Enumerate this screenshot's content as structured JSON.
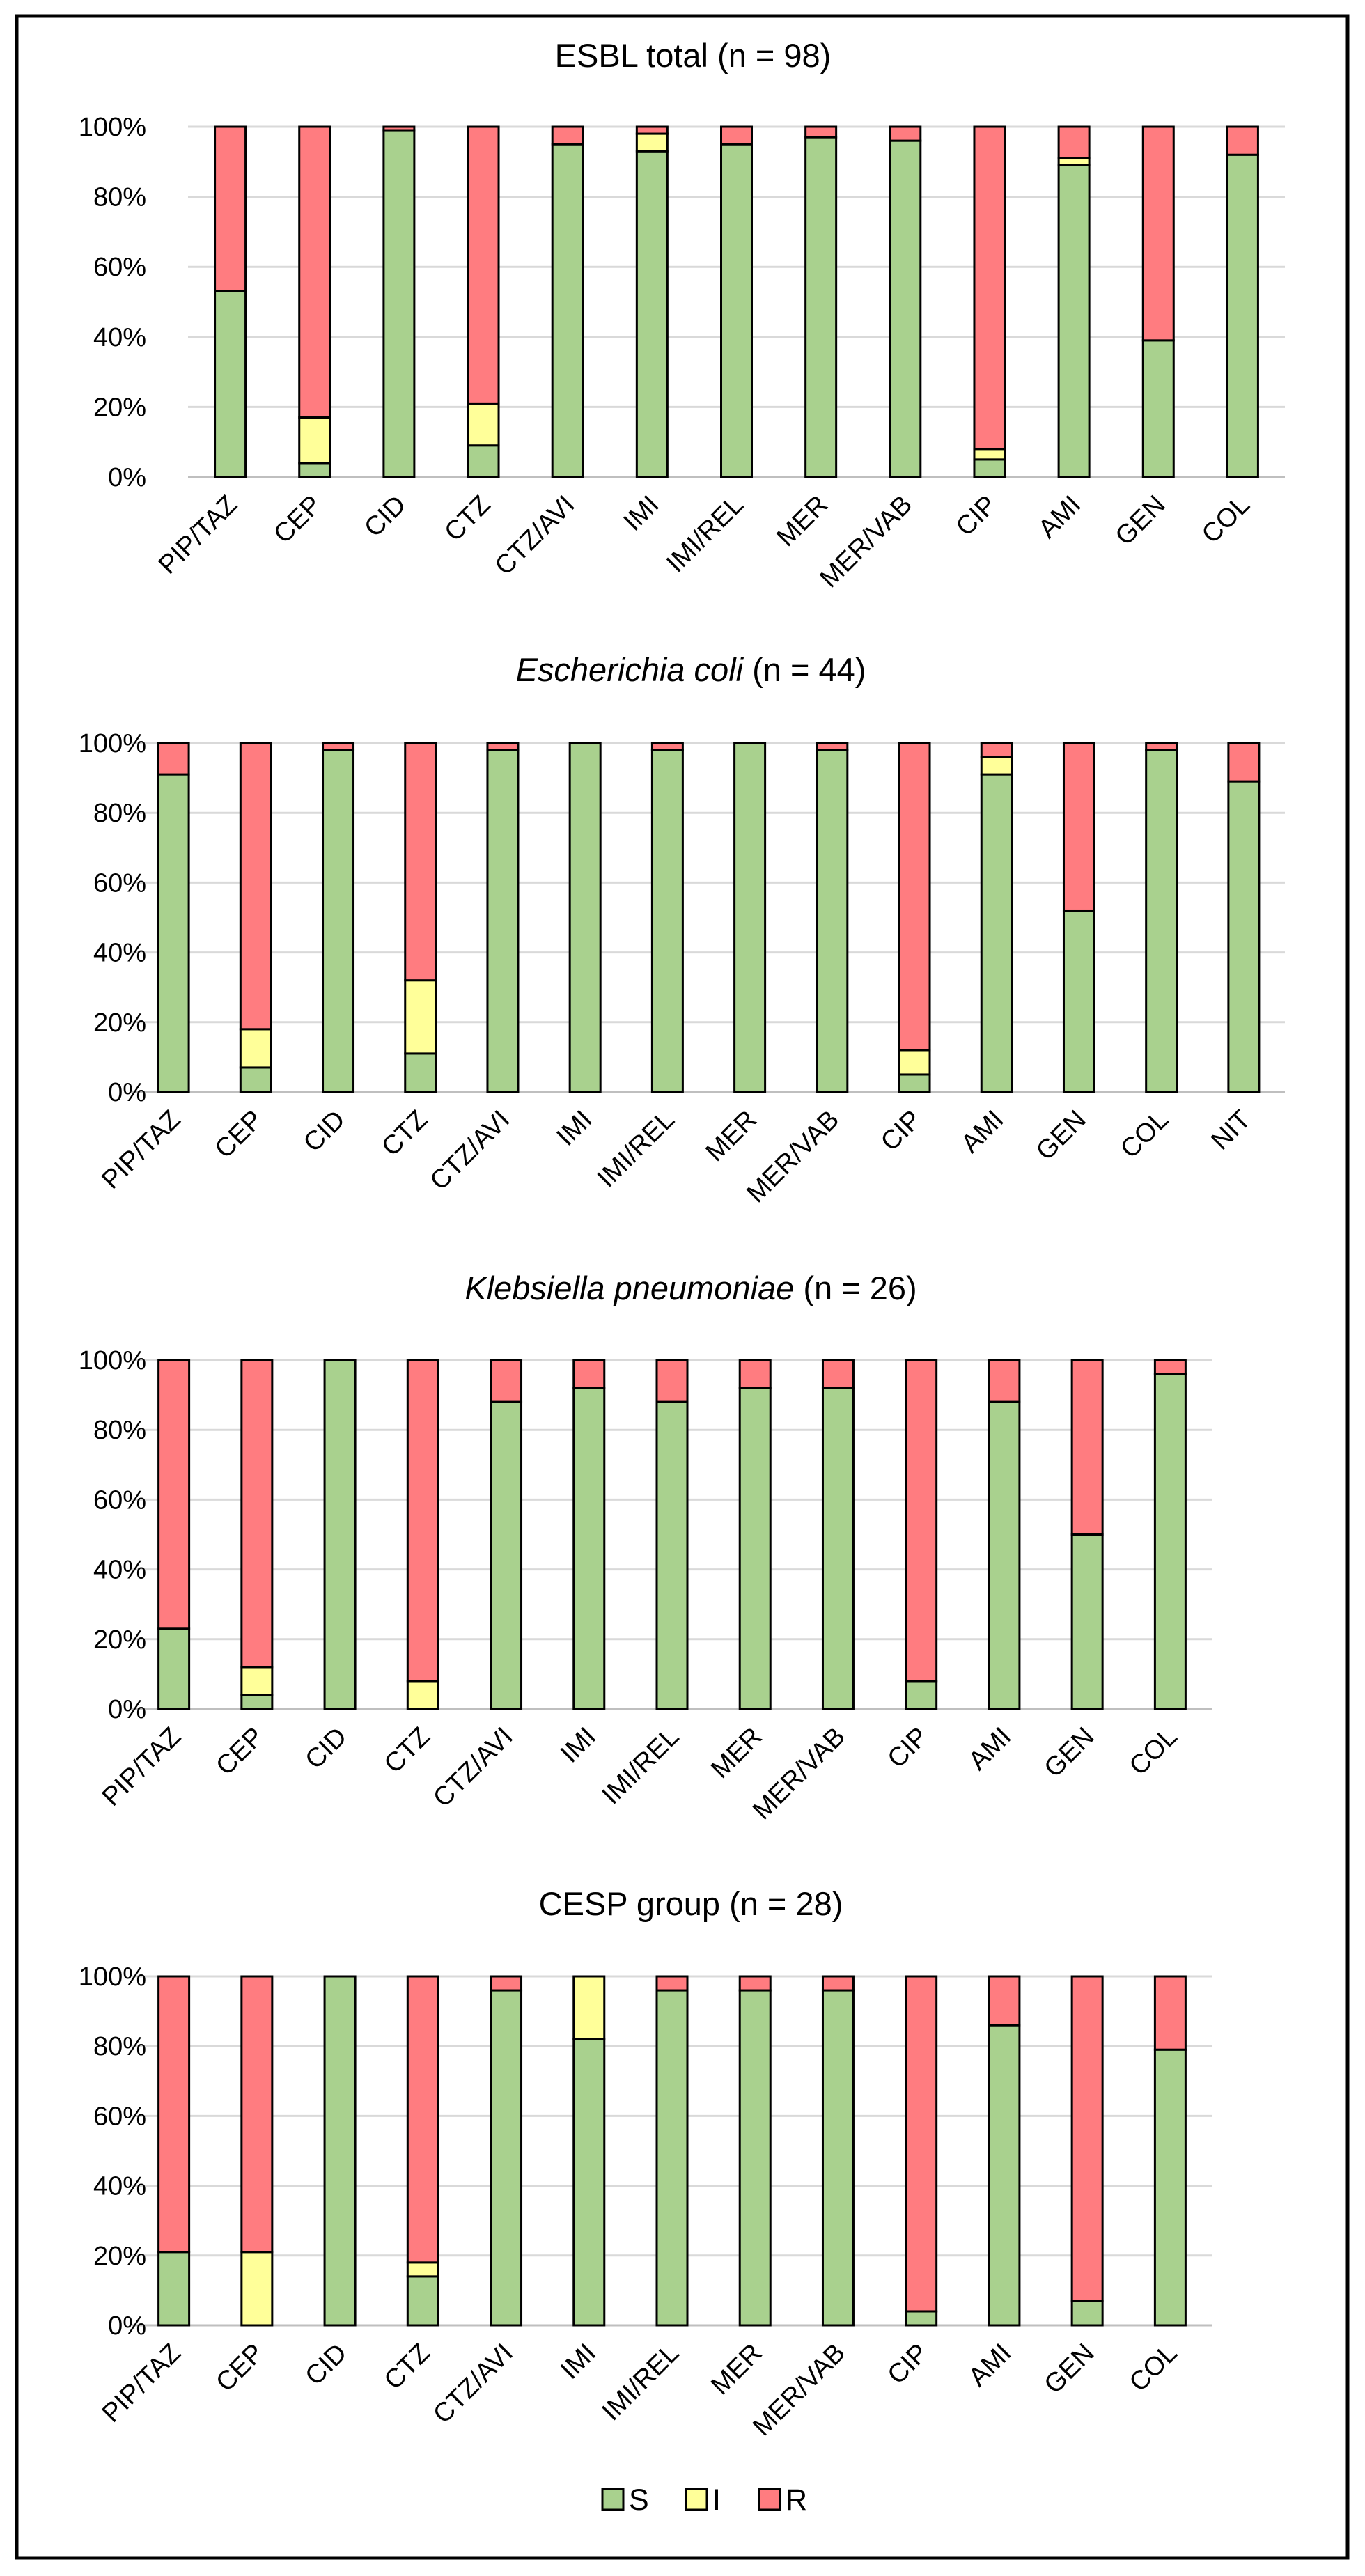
{
  "chart_data": [
    {
      "type": "bar",
      "stacked": true,
      "title": "ESBL total (n = 98)",
      "ylim": [
        0,
        100
      ],
      "yticks": [
        "0%",
        "20%",
        "40%",
        "60%",
        "80%",
        "100%"
      ],
      "categories": [
        "PIP/TAZ",
        "CEP",
        "CID",
        "CTZ",
        "CTZ/AVI",
        "IMI",
        "IMI/REL",
        "MER",
        "MER/VAB",
        "CIP",
        "AMI",
        "GEN",
        "COL"
      ],
      "series": [
        {
          "name": "S",
          "values": [
            53,
            4,
            99,
            9,
            95,
            93,
            95,
            97,
            96,
            5,
            89,
            39,
            92
          ]
        },
        {
          "name": "I",
          "values": [
            0,
            13,
            0,
            12,
            0,
            5,
            0,
            0,
            0,
            3,
            2,
            0,
            0
          ]
        },
        {
          "name": "R",
          "values": [
            47,
            83,
            1,
            79,
            5,
            2,
            5,
            3,
            4,
            92,
            9,
            61,
            8
          ]
        }
      ]
    },
    {
      "type": "bar",
      "stacked": true,
      "title_italic": "Escherichia coli",
      "title_rest": " (n = 44)",
      "ylim": [
        0,
        100
      ],
      "yticks": [
        "0%",
        "20%",
        "40%",
        "60%",
        "80%",
        "100%"
      ],
      "categories": [
        "PIP/TAZ",
        "CEP",
        "CID",
        "CTZ",
        "CTZ/AVI",
        "IMI",
        "IMI/REL",
        "MER",
        "MER/VAB",
        "CIP",
        "AMI",
        "GEN",
        "COL",
        "NIT"
      ],
      "series": [
        {
          "name": "S",
          "values": [
            91,
            7,
            98,
            11,
            98,
            100,
            98,
            100,
            98,
            5,
            91,
            52,
            98,
            89
          ]
        },
        {
          "name": "I",
          "values": [
            0,
            11,
            0,
            21,
            0,
            0,
            0,
            0,
            0,
            7,
            5,
            0,
            0,
            0
          ]
        },
        {
          "name": "R",
          "values": [
            9,
            82,
            2,
            68,
            2,
            0,
            2,
            0,
            2,
            88,
            4,
            48,
            2,
            11
          ]
        }
      ]
    },
    {
      "type": "bar",
      "stacked": true,
      "title_italic": "Klebsiella pneumoniae",
      "title_rest": " (n = 26)",
      "ylim": [
        0,
        100
      ],
      "yticks": [
        "0%",
        "20%",
        "40%",
        "60%",
        "80%",
        "100%"
      ],
      "categories": [
        "PIP/TAZ",
        "CEP",
        "CID",
        "CTZ",
        "CTZ/AVI",
        "IMI",
        "IMI/REL",
        "MER",
        "MER/VAB",
        "CIP",
        "AMI",
        "GEN",
        "COL"
      ],
      "series": [
        {
          "name": "S",
          "values": [
            23,
            4,
            100,
            0,
            88,
            92,
            88,
            92,
            92,
            8,
            88,
            50,
            96
          ]
        },
        {
          "name": "I",
          "values": [
            0,
            8,
            0,
            8,
            0,
            0,
            0,
            0,
            0,
            0,
            0,
            0,
            0
          ]
        },
        {
          "name": "R",
          "values": [
            77,
            88,
            0,
            92,
            12,
            8,
            12,
            8,
            8,
            92,
            12,
            50,
            4
          ]
        }
      ]
    },
    {
      "type": "bar",
      "stacked": true,
      "title": "CESP group (n = 28)",
      "ylim": [
        0,
        100
      ],
      "yticks": [
        "0%",
        "20%",
        "40%",
        "60%",
        "80%",
        "100%"
      ],
      "categories": [
        "PIP/TAZ",
        "CEP",
        "CID",
        "CTZ",
        "CTZ/AVI",
        "IMI",
        "IMI/REL",
        "MER",
        "MER/VAB",
        "CIP",
        "AMI",
        "GEN",
        "COL"
      ],
      "series": [
        {
          "name": "S",
          "values": [
            21,
            0,
            100,
            14,
            96,
            82,
            96,
            96,
            96,
            4,
            86,
            7,
            79
          ]
        },
        {
          "name": "I",
          "values": [
            0,
            21,
            0,
            4,
            0,
            18,
            0,
            0,
            0,
            0,
            0,
            0,
            0
          ]
        },
        {
          "name": "R",
          "values": [
            79,
            79,
            0,
            82,
            4,
            0,
            4,
            4,
            4,
            96,
            14,
            93,
            21
          ]
        }
      ]
    }
  ],
  "legend": [
    {
      "label": "S",
      "color": "#a9d18e"
    },
    {
      "label": "I",
      "color": "#ffff99"
    },
    {
      "label": "R",
      "color": "#ff7c80"
    }
  ],
  "colors": {
    "S": "#a9d18e",
    "I": "#ffff99",
    "R": "#ff7c80"
  }
}
